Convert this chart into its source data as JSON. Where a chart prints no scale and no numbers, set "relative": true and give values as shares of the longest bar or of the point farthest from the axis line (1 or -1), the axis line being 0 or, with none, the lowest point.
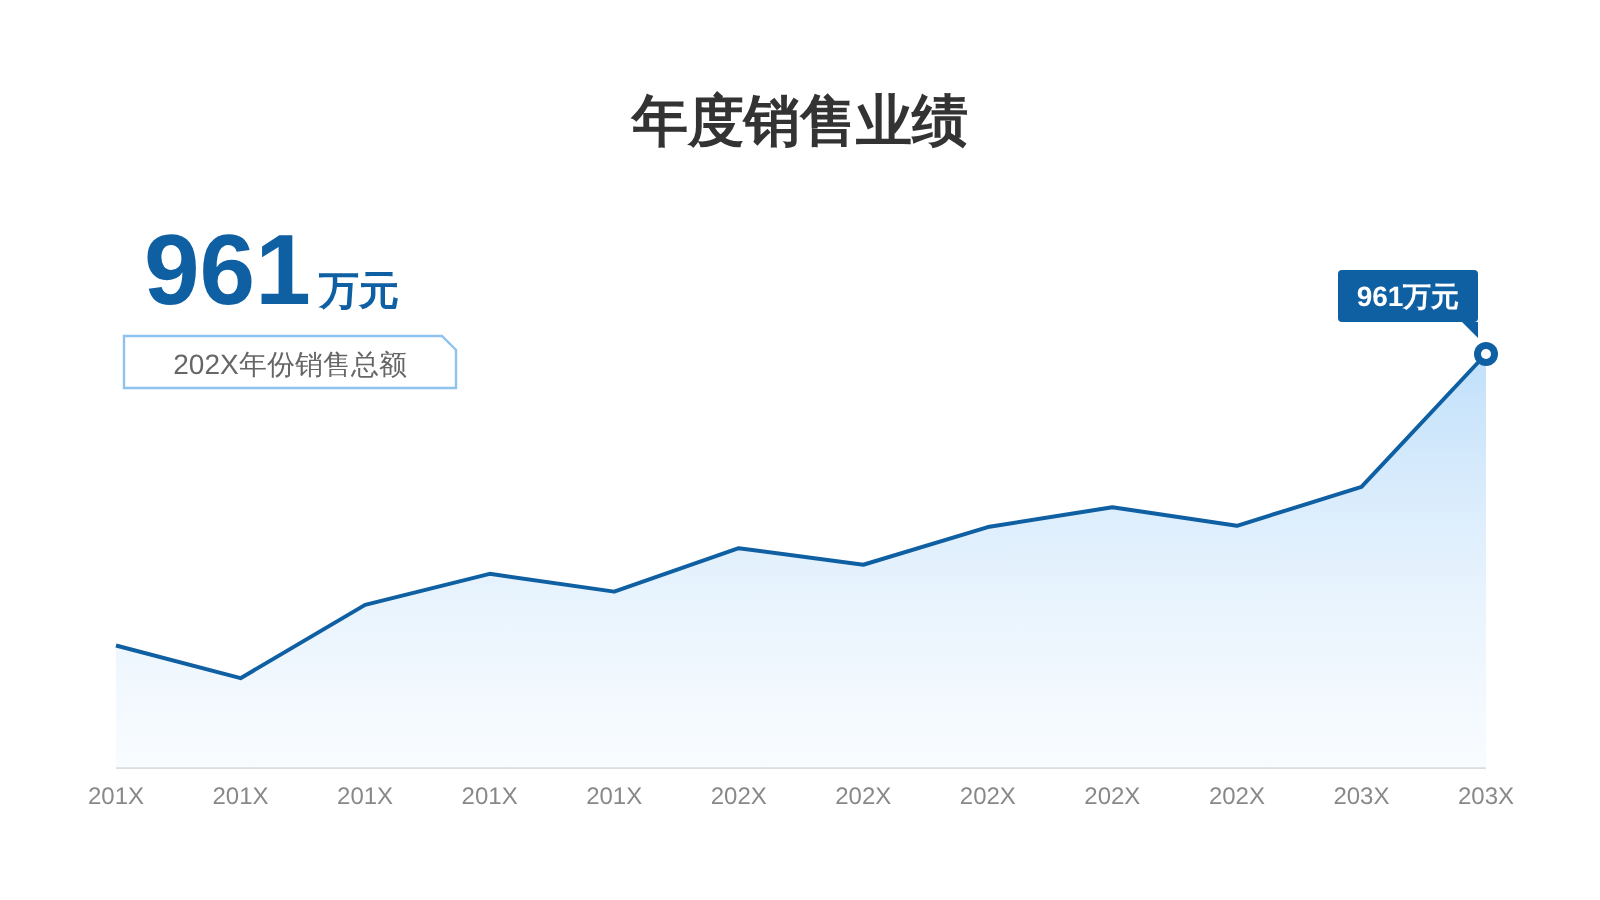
{
  "chart_data": {
    "type": "area",
    "title": "年度销售业绩",
    "relative": true,
    "tick_labels": "x",
    "categories": [
      "201X",
      "201X",
      "201X",
      "201X",
      "201X",
      "202X",
      "202X",
      "202X",
      "202X",
      "202X",
      "203X",
      "203X"
    ],
    "series": [
      {
        "color": "#0f5fa3",
        "values": [
          0.296,
          0.217,
          0.394,
          0.469,
          0.426,
          0.531,
          0.491,
          0.582,
          0.63,
          0.585,
          0.679,
          1
        ]
      }
    ],
    "annotations": [
      "961万元",
      "202X年份销售总额",
      "961万元"
    ]
  }
}
